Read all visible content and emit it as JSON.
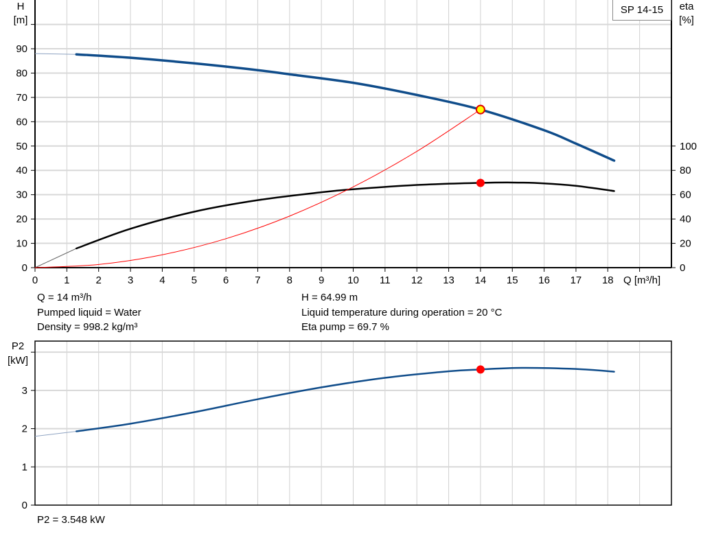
{
  "chart_data": [
    {
      "type": "line",
      "model_label": "SP 14-15",
      "xlabel": "Q [m³/h]",
      "ylabel_left": [
        "H",
        "[m]"
      ],
      "ylabel_right": [
        "eta",
        "[%]"
      ],
      "xlim": [
        0,
        20
      ],
      "x_ticks": [
        0,
        1,
        2,
        3,
        4,
        5,
        6,
        7,
        8,
        9,
        10,
        11,
        12,
        13,
        14,
        15,
        16,
        17,
        18
      ],
      "ylim_left": [
        0,
        100
      ],
      "y_ticks_left": [
        0,
        10,
        20,
        30,
        40,
        50,
        60,
        70,
        80,
        90
      ],
      "ylim_right": [
        0,
        200
      ],
      "y_ticks_right": [
        0,
        20,
        40,
        60,
        80,
        100
      ],
      "grid": true,
      "series": [
        {
          "key": "H",
          "axis": "left",
          "color": "#0f4c8a",
          "extrapolated": {
            "x": [
              0,
              1.3
            ],
            "y": [
              88,
              87.7
            ]
          },
          "x": [
            1.3,
            3,
            5,
            7,
            8,
            10,
            12,
            14,
            16,
            17,
            18.2
          ],
          "y": [
            87.7,
            86.3,
            84,
            81.2,
            79.5,
            76,
            71,
            65,
            56.5,
            51,
            44
          ]
        },
        {
          "key": "eta",
          "axis": "right",
          "color": "#000000",
          "extrapolated": {
            "x": [
              0,
              1.3
            ],
            "y": [
              0,
              15.8
            ]
          },
          "x": [
            1.3,
            3,
            5,
            7,
            9,
            10,
            12,
            14,
            15,
            16,
            17,
            18.2
          ],
          "y": [
            15.8,
            32,
            46,
            55.5,
            62,
            64.5,
            68,
            69.7,
            70,
            69.3,
            67.3,
            63
          ]
        },
        {
          "key": "system",
          "axis": "left",
          "color": "#ff0000",
          "x": [
            0,
            2,
            4,
            6,
            8,
            10,
            12,
            14
          ],
          "y": [
            0,
            1.3,
            5.3,
            11.9,
            21.2,
            33.2,
            47.8,
            65
          ]
        }
      ],
      "duty_points": [
        {
          "x": 14,
          "y": 64.99,
          "axis": "left",
          "fill": "#ffff00",
          "stroke": "#e00000"
        },
        {
          "x": 14,
          "y": 69.7,
          "axis": "right",
          "fill": "#ff0000"
        }
      ]
    },
    {
      "type": "line",
      "ylabel_left": [
        "P2",
        "[kW]"
      ],
      "xlim": [
        0,
        20
      ],
      "ylim": [
        0,
        4.29
      ],
      "y_ticks": [
        0,
        1,
        2,
        3
      ],
      "grid": true,
      "series": [
        {
          "key": "P2",
          "color": "#0f4c8a",
          "extrapolated": {
            "x": [
              0,
              1.3
            ],
            "y": [
              1.8,
              1.93
            ]
          },
          "x": [
            1.3,
            3,
            5,
            7,
            9,
            11,
            13,
            14,
            15.3,
            17,
            18.2
          ],
          "y": [
            1.93,
            2.13,
            2.43,
            2.77,
            3.08,
            3.33,
            3.5,
            3.548,
            3.59,
            3.56,
            3.49
          ]
        }
      ],
      "duty_points": [
        {
          "x": 14,
          "y": 3.548,
          "fill": "#ff0000"
        }
      ]
    }
  ],
  "info": {
    "q": "Q = 14 m³/h",
    "liquid": "Pumped liquid = Water",
    "density": "Density = 998.2 kg/m³",
    "h": "H = 64.99 m",
    "temp": "Liquid temperature during operation = 20 °C",
    "eta": "Eta pump = 69.7 %",
    "p2": "P2 = 3.548 kW"
  }
}
